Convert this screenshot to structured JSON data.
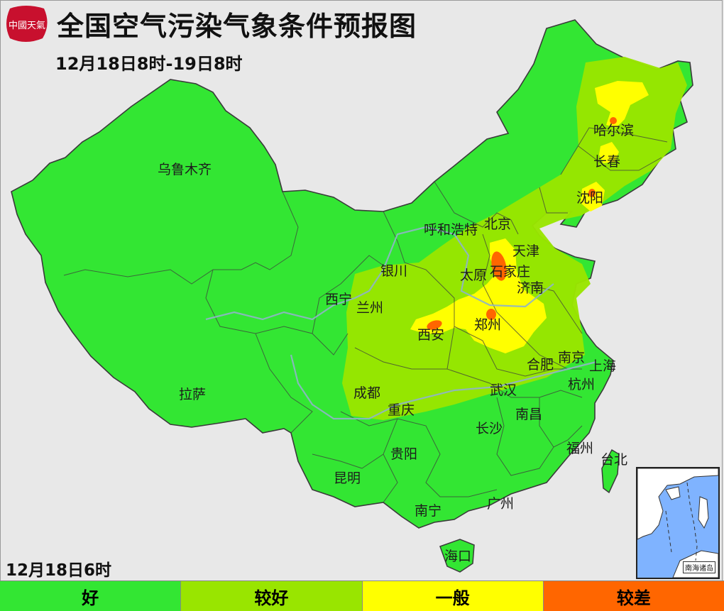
{
  "header": {
    "title": "全国空气污染气象条件预报图",
    "subtitle": "12月18日8时-19日8时",
    "logo_text": "中國天氣"
  },
  "issue_time": "12月18日6时",
  "cities": {
    "urumqi": "乌鲁木齐",
    "lhasa": "拉萨",
    "xining": "西宁",
    "lanzhou": "兰州",
    "yinchuan": "银川",
    "hohhot": "呼和浩特",
    "beijing": "北京",
    "tianjin": "天津",
    "taiyuan": "太原",
    "shijiazhuang": "石家庄",
    "jinan": "济南",
    "xian": "西安",
    "zhengzhou": "郑州",
    "harbin": "哈尔滨",
    "changchun": "长春",
    "shenyang": "沈阳",
    "nanjing": "南京",
    "shanghai": "上海",
    "hefei": "合肥",
    "hangzhou": "杭州",
    "chengdu": "成都",
    "chongqing": "重庆",
    "wuhan": "武汉",
    "nanchang": "南昌",
    "changsha": "长沙",
    "guiyang": "贵阳",
    "fuzhou": "福州",
    "taipei": "台北",
    "kunming": "昆明",
    "nanning": "南宁",
    "guangzhou": "广州",
    "haikou": "海口"
  },
  "inset": {
    "label": "南海诸岛"
  },
  "legend": [
    {
      "label": "好",
      "color": "#33e633"
    },
    {
      "label": "较好",
      "color": "#99e500"
    },
    {
      "label": "一般",
      "color": "#ffff00"
    },
    {
      "label": "较差",
      "color": "#ff6600"
    }
  ]
}
